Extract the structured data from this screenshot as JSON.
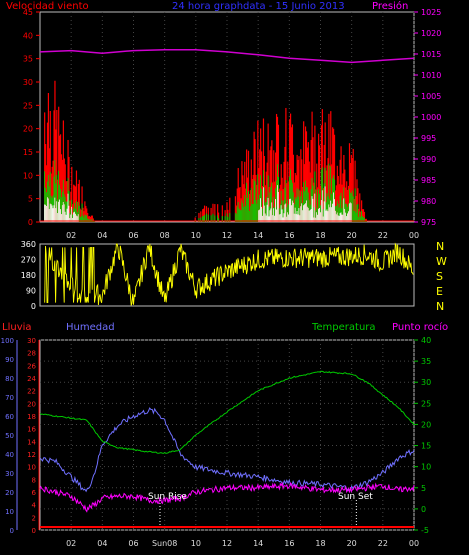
{
  "panel1": {
    "left_label": "Velocidad viento",
    "title": "24 hora graphdata - 15 Junio 2013",
    "right_label": "Presión",
    "left_ticks": [
      0,
      5,
      10,
      15,
      20,
      25,
      30,
      35,
      40,
      45
    ],
    "right_ticks": [
      975,
      980,
      985,
      990,
      995,
      1000,
      1005,
      1010,
      1015,
      1020,
      1025
    ],
    "x_ticks": [
      "02",
      "04",
      "06",
      "08",
      "10",
      "12",
      "14",
      "16",
      "18",
      "20",
      "22",
      "00"
    ]
  },
  "panel2": {
    "left_ticks": [
      0,
      90,
      180,
      270,
      360
    ],
    "right_labels": [
      "N",
      "W",
      "S",
      "E",
      "N"
    ]
  },
  "panel3": {
    "labels": {
      "rain": "Lluvia",
      "humidity": "Humedad",
      "temperature": "Temperatura",
      "dewpoint": "Punto rocío"
    },
    "humidity_ticks": [
      0,
      10,
      20,
      30,
      40,
      50,
      60,
      70,
      80,
      90,
      100
    ],
    "rain_ticks": [
      0,
      2,
      4,
      6,
      8,
      10,
      12,
      14,
      16,
      18,
      20,
      22,
      24,
      26,
      28,
      30
    ],
    "temp_ticks": [
      -5,
      0,
      5,
      10,
      15,
      20,
      25,
      30,
      35,
      40
    ],
    "x_ticks": [
      "02",
      "04",
      "06",
      "Sun08",
      "10",
      "12",
      "14",
      "16",
      "18",
      "20",
      "22",
      "00"
    ],
    "sunrise_label": "Sun Rise",
    "sunset_label": "Sun Set"
  },
  "colors": {
    "wind_gust": "#ff0000",
    "wind_avg": "#00d000",
    "wind_low": "#ffffff",
    "pressure": "#d000d0",
    "direction": "#ffff00",
    "humidity": "#7070ff",
    "temperature": "#00c800",
    "dewpoint": "#ff00ff",
    "rain": "#ff0000"
  },
  "chart_data": [
    {
      "type": "line",
      "series": [
        {
          "name": "Velocidad viento",
          "x": [
            0.5,
            1,
            1.5,
            2,
            2.5,
            3,
            3.5,
            10,
            12,
            13,
            14,
            15,
            16,
            17,
            18,
            19,
            20,
            20.5,
            21
          ],
          "values": [
            25,
            20,
            15,
            10,
            7,
            4,
            0,
            2,
            4,
            10,
            15,
            17,
            17,
            15,
            18,
            15,
            12,
            5,
            0
          ]
        },
        {
          "name": "Presión",
          "x": [
            0,
            2,
            4,
            6,
            8,
            10,
            12,
            14,
            16,
            18,
            20,
            22,
            24
          ],
          "values": [
            1015.5,
            1015.8,
            1015.2,
            1015.8,
            1016,
            1016,
            1015.5,
            1014.8,
            1014,
            1013.5,
            1013,
            1013.5,
            1014
          ]
        }
      ],
      "ylim": [
        0,
        45
      ],
      "ylim_right": [
        975,
        1025
      ]
    },
    {
      "type": "scatter",
      "series": [
        {
          "name": "direction",
          "x": [
            0.5,
            2,
            3,
            4,
            5,
            6,
            7,
            8,
            9,
            10,
            12,
            14,
            16,
            18,
            20,
            21,
            22,
            23,
            24
          ],
          "values": [
            300,
            120,
            80,
            60,
            350,
            10,
            350,
            20,
            330,
            100,
            200,
            270,
            280,
            280,
            290,
            300,
            250,
            320,
            200
          ]
        }
      ],
      "ylim": [
        0,
        360
      ]
    },
    {
      "type": "line",
      "series": [
        {
          "name": "Humedad",
          "x": [
            0,
            1,
            2,
            3,
            3.5,
            4,
            5,
            6,
            7,
            7.5,
            8,
            9,
            10,
            12,
            14,
            16,
            18,
            20,
            21,
            22,
            23,
            24
          ],
          "values": [
            38,
            36,
            28,
            20,
            30,
            45,
            55,
            60,
            63,
            62,
            58,
            40,
            33,
            30,
            28,
            25,
            24,
            22,
            25,
            30,
            38,
            42
          ]
        },
        {
          "name": "Temperatura",
          "x": [
            0,
            1,
            2,
            3,
            4,
            5,
            6,
            7,
            8,
            9,
            10,
            12,
            14,
            16,
            18,
            20,
            21,
            22,
            23,
            24
          ],
          "values": [
            22.5,
            22,
            21.5,
            21,
            16,
            14.5,
            14,
            13.5,
            13.2,
            14,
            17.5,
            23,
            28,
            31,
            32.5,
            32,
            30,
            27,
            24,
            20
          ]
        },
        {
          "name": "Punto rocío",
          "x": [
            0,
            1,
            2,
            3,
            3.5,
            4,
            5,
            6,
            7,
            8,
            9,
            10,
            12,
            14,
            16,
            18,
            20,
            21,
            22,
            23,
            24
          ],
          "values": [
            5,
            4,
            3,
            0,
            1,
            2.5,
            3,
            3,
            2,
            2,
            2.5,
            4,
            5,
            5,
            5.5,
            4.5,
            4.5,
            5,
            5.5,
            4.5,
            5
          ]
        },
        {
          "name": "Lluvia",
          "x": [
            0,
            24
          ],
          "values": [
            0,
            0
          ]
        }
      ],
      "ylim_humidity": [
        0,
        100
      ],
      "ylim_rain": [
        0,
        30
      ],
      "ylim_temp": [
        -5,
        40
      ]
    }
  ]
}
